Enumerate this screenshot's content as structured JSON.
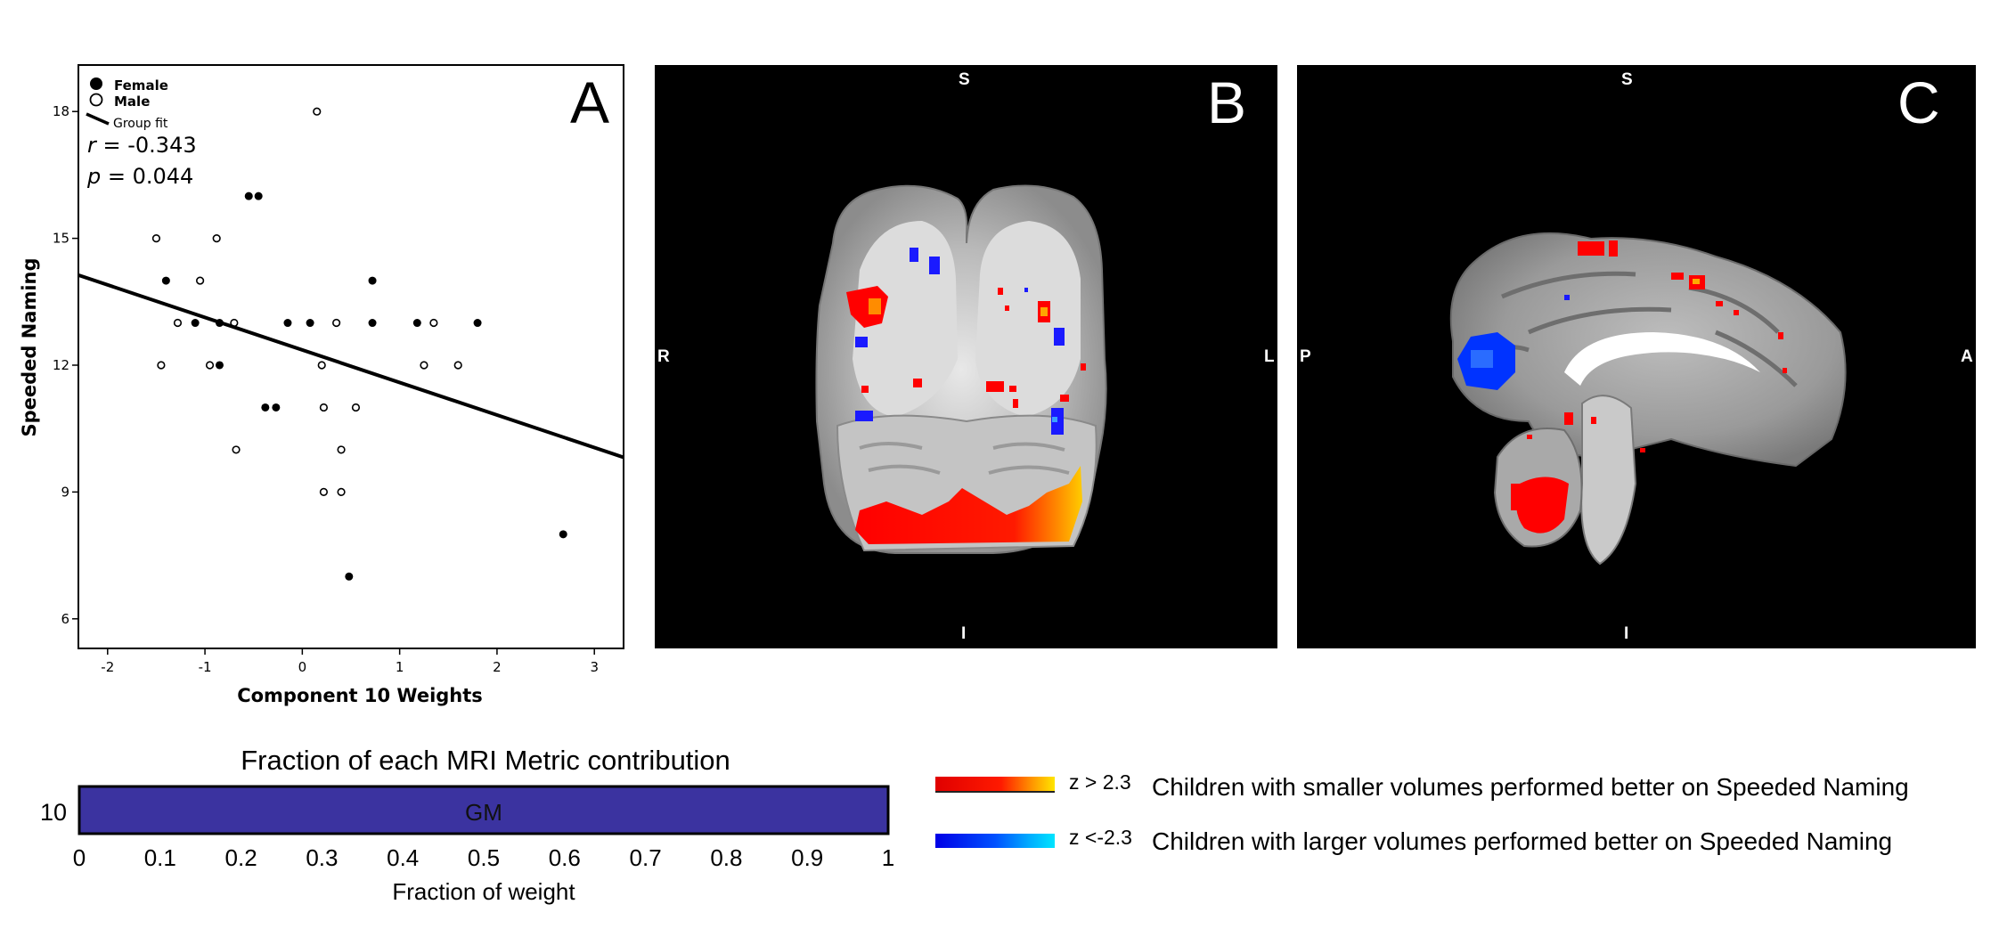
{
  "panel_a": {
    "letter": "A",
    "legend": {
      "female": "Female",
      "male": "Male",
      "fit": "Group fit"
    },
    "stats": {
      "r_sym": "r",
      "r_val": " = -0.343",
      "p_sym": "p",
      "p_val": " = 0.044"
    }
  },
  "panel_b": {
    "letter": "B",
    "top": "S",
    "bottom": "I",
    "left": "R",
    "right": "L"
  },
  "panel_c": {
    "letter": "C",
    "top": "S",
    "bottom": "I",
    "left": "P",
    "right": "A"
  },
  "bar_chart_title": "Fraction of each MRI Metric contribution",
  "colorbar_legend": {
    "pos_label": "z > 2.3",
    "pos_text": "Children with smaller volumes performed better on Speeded Naming",
    "neg_label": "z <-2.3",
    "neg_text": "Children with larger volumes performed better on Speeded Naming",
    "pos_colors": [
      "#ff0000",
      "#ff7a00",
      "#ffee00"
    ],
    "neg_colors": [
      "#0000ff",
      "#0077ff",
      "#00e5ff"
    ]
  },
  "chart_data": [
    {
      "type": "scatter",
      "title": "",
      "xlabel": "Component 10 Weights",
      "ylabel": "Speeded Naming",
      "xlim": [
        -2.3,
        3.3
      ],
      "ylim": [
        5.3,
        19.1
      ],
      "xticks": [
        -2,
        -1,
        0,
        1,
        2,
        3
      ],
      "yticks": [
        6,
        9,
        12,
        15,
        18
      ],
      "legend_position": "top-left",
      "series": [
        {
          "name": "Female",
          "marker": "filled-circle",
          "points": [
            [
              -1.4,
              14
            ],
            [
              -1.1,
              13
            ],
            [
              -0.85,
              13
            ],
            [
              -0.85,
              12
            ],
            [
              -0.55,
              16
            ],
            [
              -0.45,
              16
            ],
            [
              -0.38,
              11
            ],
            [
              -0.27,
              11
            ],
            [
              -0.15,
              13
            ],
            [
              0.08,
              13
            ],
            [
              0.72,
              13
            ],
            [
              0.72,
              14
            ],
            [
              1.18,
              13
            ],
            [
              1.8,
              13
            ],
            [
              2.68,
              8
            ],
            [
              0.48,
              7
            ]
          ]
        },
        {
          "name": "Male",
          "marker": "open-circle",
          "points": [
            [
              -1.5,
              15
            ],
            [
              -1.45,
              12
            ],
            [
              -1.28,
              13
            ],
            [
              -1.05,
              14
            ],
            [
              -0.95,
              12
            ],
            [
              -0.88,
              15
            ],
            [
              -0.7,
              13
            ],
            [
              -0.68,
              10
            ],
            [
              0.15,
              18
            ],
            [
              0.2,
              12
            ],
            [
              0.22,
              11
            ],
            [
              0.22,
              9
            ],
            [
              0.35,
              13
            ],
            [
              0.4,
              10
            ],
            [
              0.4,
              9
            ],
            [
              0.55,
              11
            ],
            [
              1.25,
              12
            ],
            [
              1.35,
              13
            ],
            [
              1.6,
              12
            ]
          ]
        },
        {
          "name": "Group fit",
          "marker": "line",
          "points": [
            [
              -2.3,
              14.13
            ],
            [
              3.3,
              9.82
            ]
          ]
        }
      ]
    },
    {
      "type": "bar",
      "orientation": "horizontal",
      "title": "Fraction of each MRI Metric contribution",
      "xlabel": "Fraction of weight",
      "ylabel": "",
      "categories": [
        "10"
      ],
      "series": [
        {
          "name": "GM",
          "values": [
            1.0
          ]
        }
      ],
      "xlim": [
        0,
        1
      ],
      "xticks": [
        0,
        0.1,
        0.2,
        0.3,
        0.4,
        0.5,
        0.6,
        0.7,
        0.8,
        0.9,
        1
      ],
      "xtick_labels": [
        "0",
        "0.1",
        "0.2",
        "0.3",
        "0.4",
        "0.5",
        "0.6",
        "0.7",
        "0.8",
        "0.9",
        "1"
      ],
      "bar_color": "#3b33a0"
    }
  ]
}
